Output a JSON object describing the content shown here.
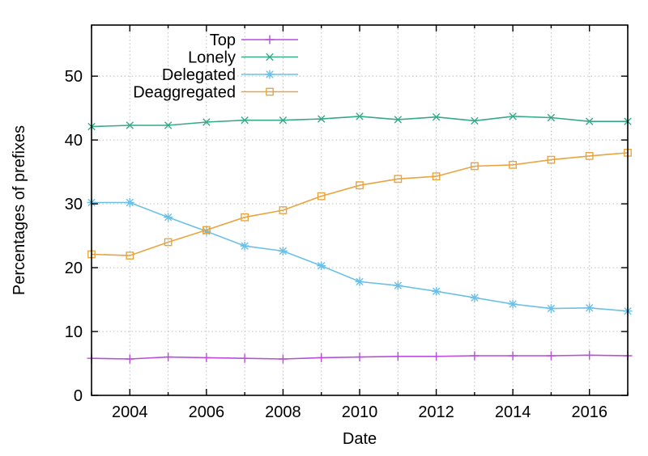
{
  "chart_data": {
    "type": "line",
    "title": "",
    "xlabel": "Date",
    "ylabel": "Percentages of prefixes",
    "x": [
      2003,
      2004,
      2005,
      2006,
      2007,
      2008,
      2009,
      2010,
      2011,
      2012,
      2013,
      2014,
      2015,
      2016,
      2017
    ],
    "xlim": [
      2003,
      2017
    ],
    "ylim": [
      0,
      58
    ],
    "xticks": [
      2004,
      2006,
      2008,
      2010,
      2012,
      2014,
      2016
    ],
    "xtick_labels": [
      "2004",
      "2006",
      "2008",
      "2010",
      "2012",
      "2014",
      "2016"
    ],
    "yticks": [
      0,
      10,
      20,
      30,
      40,
      50
    ],
    "ytick_labels": [
      "0",
      "10",
      "20",
      "30",
      "40",
      "50"
    ],
    "grid": {
      "visible": true,
      "style": "dotted",
      "vertical_every_year": true,
      "horizontal_every": 10,
      "color": "#bdbdbd"
    },
    "legend": {
      "position": "top-inside-left",
      "entries": [
        "Top",
        "Lonely",
        "Delegated",
        "Deaggregated"
      ]
    },
    "border_color": "#000000",
    "background_color": "#ffffff",
    "series": [
      {
        "name": "Top",
        "color": "#b94fd9",
        "marker": "plus",
        "values": [
          5.8,
          5.7,
          6.0,
          5.9,
          5.8,
          5.7,
          5.9,
          6.0,
          6.1,
          6.1,
          6.2,
          6.2,
          6.2,
          6.3,
          6.2
        ]
      },
      {
        "name": "Lonely",
        "color": "#36a98a",
        "marker": "cross",
        "values": [
          42.1,
          42.3,
          42.3,
          42.8,
          43.1,
          43.1,
          43.3,
          43.7,
          43.2,
          43.6,
          43.0,
          43.7,
          43.5,
          42.9,
          42.9
        ]
      },
      {
        "name": "Delegated",
        "color": "#6cc0e7",
        "marker": "asterisk",
        "values": [
          30.2,
          30.2,
          27.9,
          25.7,
          23.4,
          22.6,
          20.3,
          17.8,
          17.2,
          16.3,
          15.3,
          14.3,
          13.6,
          13.7,
          13.2
        ]
      },
      {
        "name": "Deaggregated",
        "color": "#e9a440",
        "marker": "square",
        "values": [
          22.1,
          21.9,
          24.0,
          25.9,
          27.9,
          29.0,
          31.2,
          32.9,
          33.9,
          34.3,
          35.9,
          36.1,
          36.9,
          37.5,
          38.0
        ]
      }
    ]
  }
}
